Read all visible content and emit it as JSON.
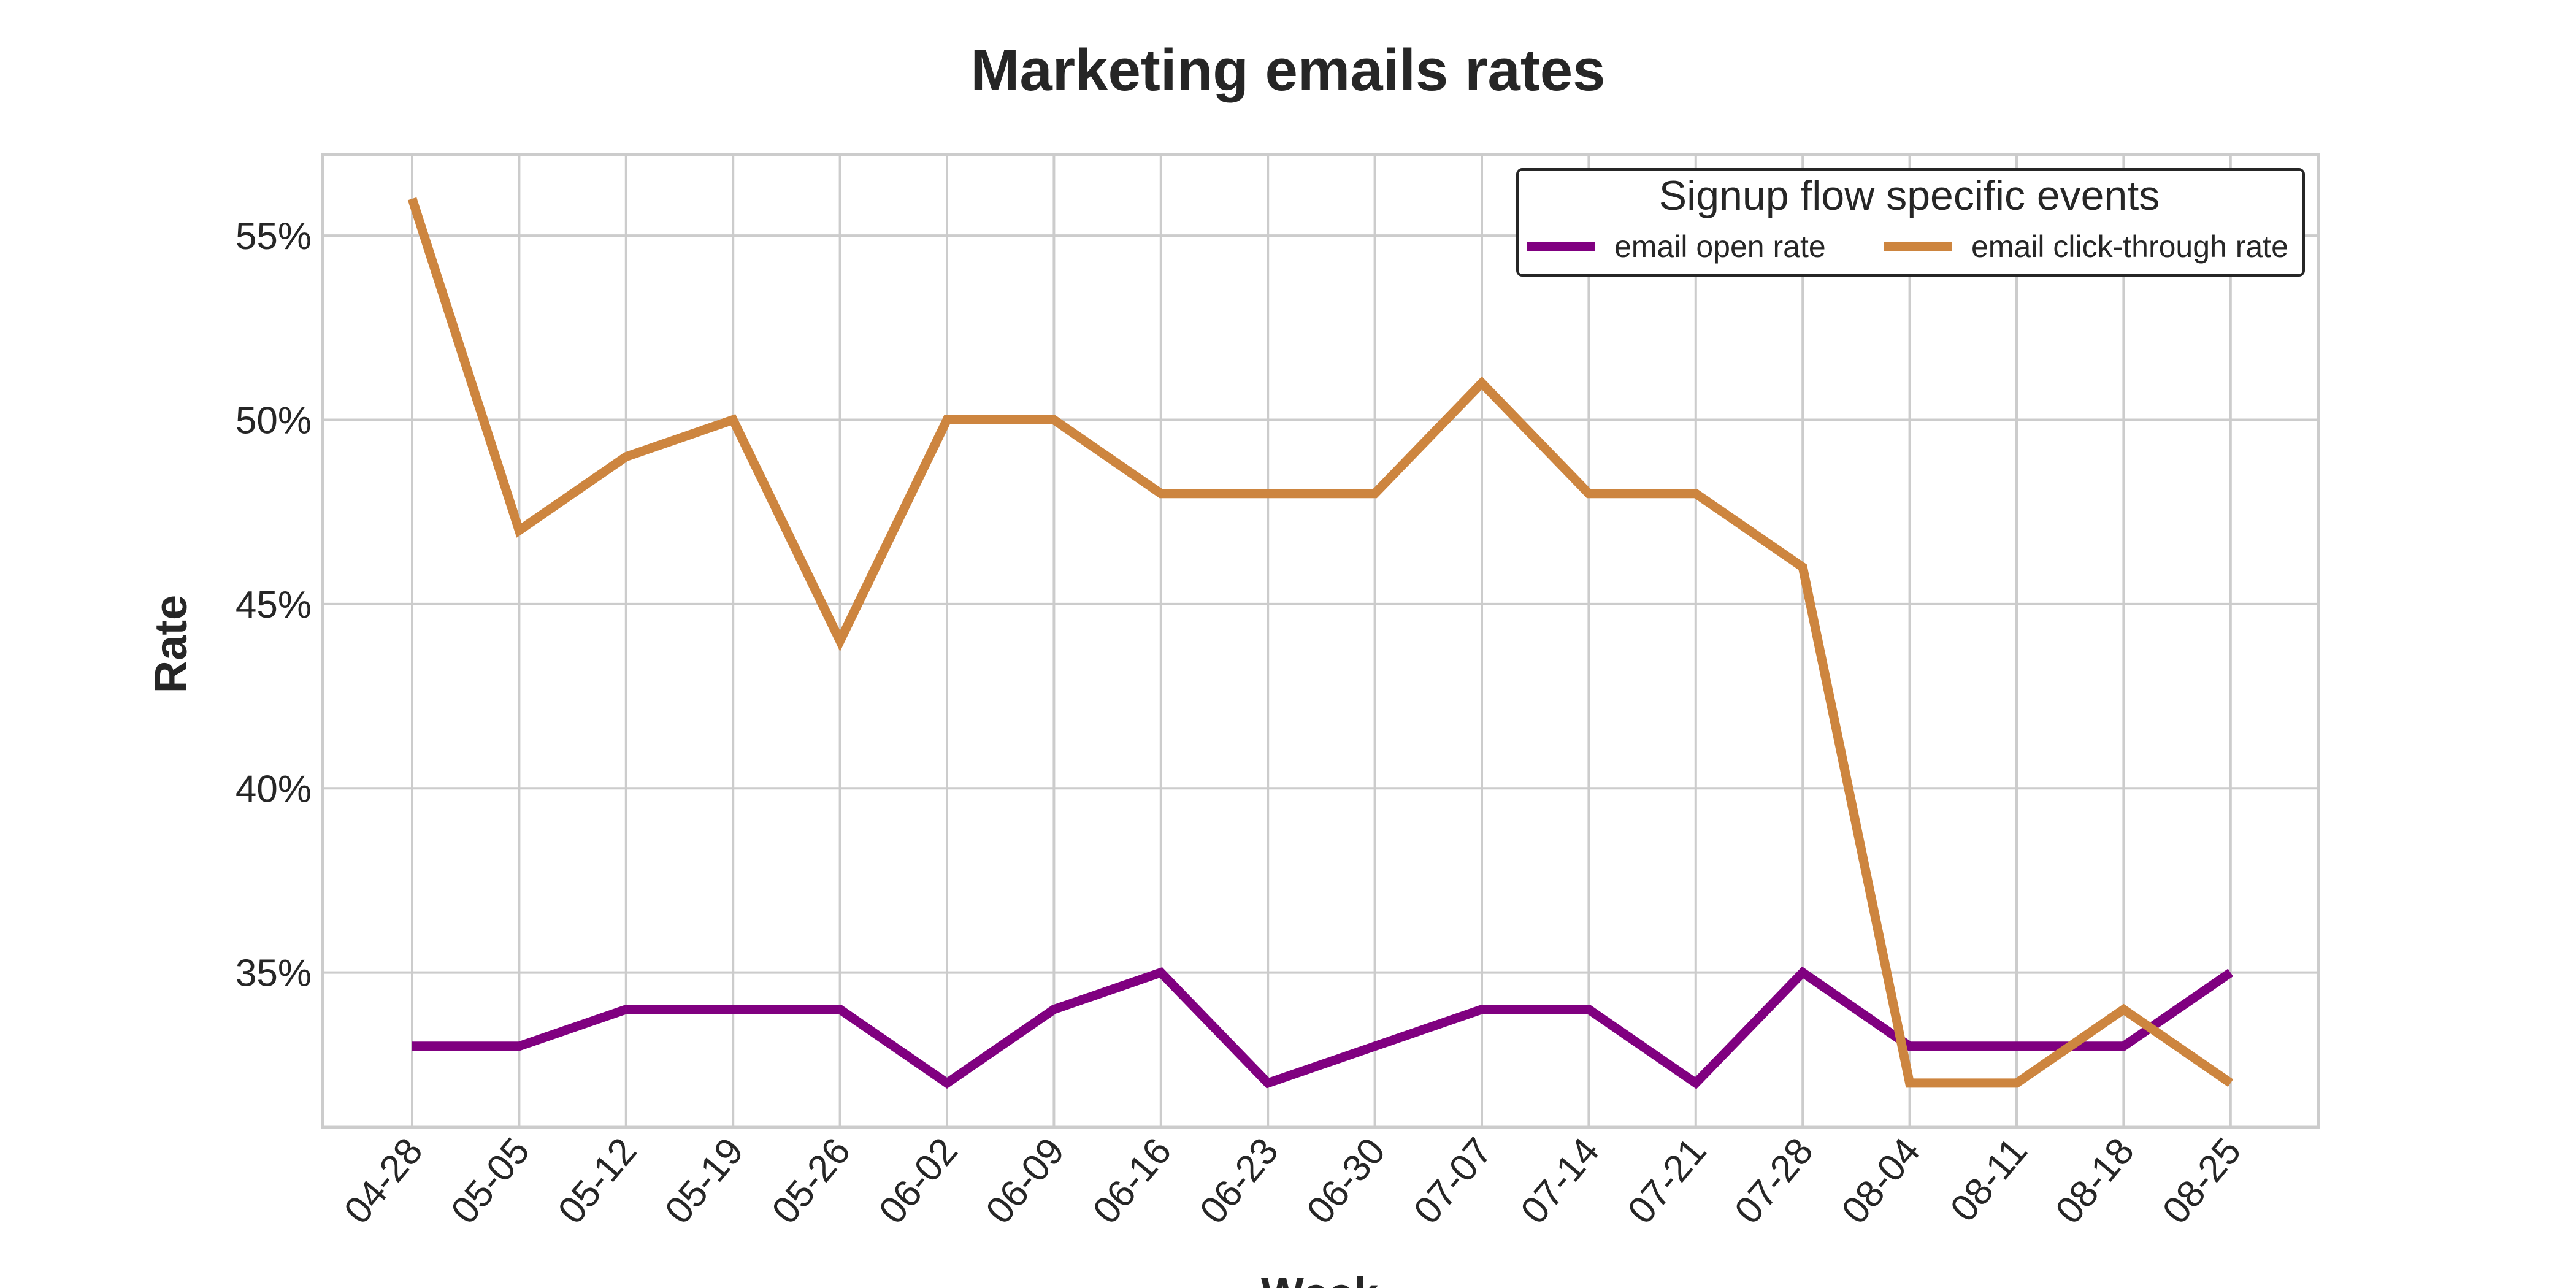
{
  "chart_data": {
    "type": "line",
    "title": "Marketing emails rates",
    "xlabel": "Week",
    "ylabel": "Rate",
    "categories": [
      "04-28",
      "05-05",
      "05-12",
      "05-19",
      "05-26",
      "06-02",
      "06-09",
      "06-16",
      "06-23",
      "06-30",
      "07-07",
      "07-14",
      "07-21",
      "07-28",
      "08-04",
      "08-11",
      "08-18",
      "08-25"
    ],
    "yticks": [
      35,
      40,
      45,
      50,
      55
    ],
    "ytick_labels": [
      "35%",
      "40%",
      "45%",
      "50%",
      "55%"
    ],
    "ylim": [
      30.8,
      57.2
    ],
    "grid": true,
    "legend": {
      "title": "Signup flow specific events",
      "placement": "top-right"
    },
    "series": [
      {
        "name": "email open rate",
        "color": "#800080",
        "values": [
          33,
          33,
          34,
          34,
          34,
          32,
          34,
          35,
          32,
          33,
          34,
          34,
          32,
          35,
          33,
          33,
          33,
          35
        ]
      },
      {
        "name": "email click-through rate",
        "color": "#cd853f",
        "values": [
          56,
          47,
          49,
          50,
          44,
          50,
          50,
          48,
          48,
          48,
          51,
          48,
          48,
          46,
          32,
          32,
          34,
          32
        ]
      }
    ]
  }
}
